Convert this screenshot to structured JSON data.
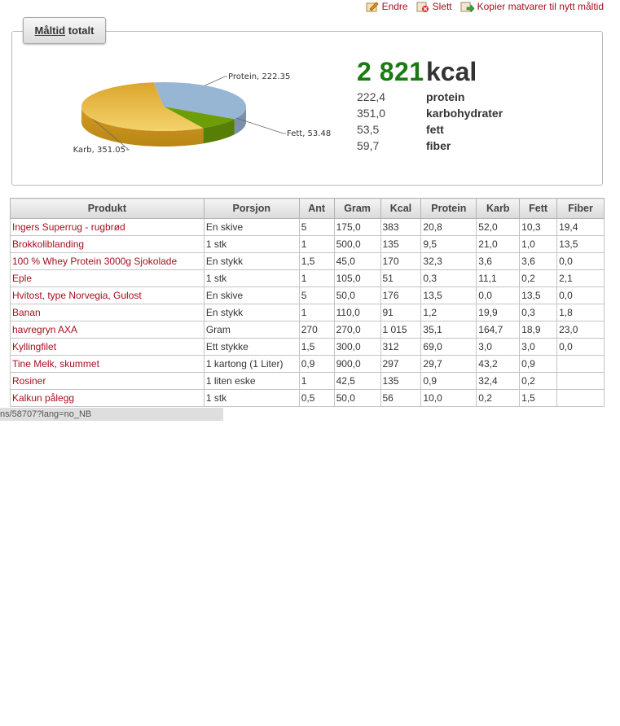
{
  "actions": {
    "edit": "Endre",
    "delete": "Slett",
    "copy": "Kopier matvarer til nytt måltid"
  },
  "summary_tab": {
    "underlined": "Måltid",
    "rest": "totalt"
  },
  "chart_data": {
    "type": "pie",
    "slices": [
      {
        "label": "Protein",
        "value": 222.35,
        "color": "#97b6d3"
      },
      {
        "label": "Fett",
        "value": 53.48,
        "color": "#6d9d07"
      },
      {
        "label": "Karb",
        "value": 351.05,
        "color": "#e8b73a"
      }
    ],
    "data_labels": [
      "Protein, 222.35",
      "Fett, 53.48",
      "Karb, 351.05"
    ]
  },
  "totals": {
    "kcal": "2 821",
    "kcal_unit": "kcal",
    "nutrients": [
      {
        "value": "222,4",
        "name": "protein"
      },
      {
        "value": "351,0",
        "name": "karbohydrater"
      },
      {
        "value": "53,5",
        "name": "fett"
      },
      {
        "value": "59,7",
        "name": "fiber"
      }
    ]
  },
  "table": {
    "headers": [
      "Produkt",
      "Porsjon",
      "Ant",
      "Gram",
      "Kcal",
      "Protein",
      "Karb",
      "Fett",
      "Fiber"
    ],
    "rows": [
      [
        "Ingers Superrug - rugbrød",
        "En skive",
        "5",
        "175,0",
        "383",
        "20,8",
        "52,0",
        "10,3",
        "19,4"
      ],
      [
        "Brokkoliblanding",
        "1 stk",
        "1",
        "500,0",
        "135",
        "9,5",
        "21,0",
        "1,0",
        "13,5"
      ],
      [
        "100 % Whey Protein 3000g Sjokolade",
        "En stykk",
        "1,5",
        "45,0",
        "170",
        "32,3",
        "3,6",
        "3,6",
        "0,0"
      ],
      [
        "Eple",
        "1 stk",
        "1",
        "105,0",
        "51",
        "0,3",
        "11,1",
        "0,2",
        "2,1"
      ],
      [
        "Hvitost, type Norvegia, Gulost",
        "En skive",
        "5",
        "50,0",
        "176",
        "13,5",
        "0,0",
        "13,5",
        "0,0"
      ],
      [
        "Banan",
        "En stykk",
        "1",
        "110,0",
        "91",
        "1,2",
        "19,9",
        "0,3",
        "1,8"
      ],
      [
        "havregryn AXA",
        "Gram",
        "270",
        "270,0",
        "1 015",
        "35,1",
        "164,7",
        "18,9",
        "23,0"
      ],
      [
        "Kyllingfilet",
        "Ett stykke",
        "1,5",
        "300,0",
        "312",
        "69,0",
        "3,0",
        "3,0",
        "0,0"
      ],
      [
        "Tine Melk, skummet",
        "1 kartong (1 Liter)",
        "0,9",
        "900,0",
        "297",
        "29,7",
        "43,2",
        "0,9",
        ""
      ],
      [
        "Rosiner",
        "1 liten eske",
        "1",
        "42,5",
        "135",
        "0,9",
        "32,4",
        "0,2",
        ""
      ],
      [
        "Kalkun pålegg",
        "1 stk",
        "0,5",
        "50,0",
        "56",
        "10,0",
        "0,2",
        "1,5",
        ""
      ]
    ]
  },
  "status_url": "ns/58707?lang=no_NB"
}
